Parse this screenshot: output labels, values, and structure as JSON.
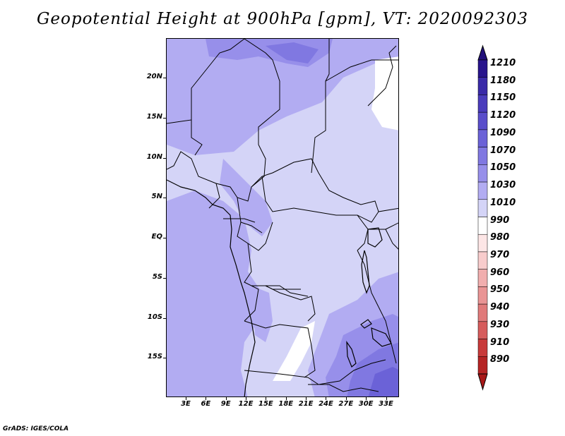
{
  "title": "Geopotential Height at 900hPa [gpm], VT: 2020092303",
  "footer": "GrADS: IGES/COLA",
  "lat_ticks": [
    {
      "label": "20N",
      "value": 20
    },
    {
      "label": "15N",
      "value": 15
    },
    {
      "label": "10N",
      "value": 10
    },
    {
      "label": "5N",
      "value": 5
    },
    {
      "label": "EQ",
      "value": 0
    },
    {
      "label": "5S",
      "value": -5
    },
    {
      "label": "10S",
      "value": -10
    },
    {
      "label": "15S",
      "value": -15
    }
  ],
  "lon_ticks": [
    {
      "label": "3E",
      "value": 3
    },
    {
      "label": "6E",
      "value": 6
    },
    {
      "label": "9E",
      "value": 9
    },
    {
      "label": "12E",
      "value": 12
    },
    {
      "label": "15E",
      "value": 15
    },
    {
      "label": "18E",
      "value": 18
    },
    {
      "label": "21E",
      "value": 21
    },
    {
      "label": "24E",
      "value": 24
    },
    {
      "label": "27E",
      "value": 27
    },
    {
      "label": "30E",
      "value": 30
    },
    {
      "label": "33E",
      "value": 33
    }
  ],
  "colorbar": {
    "levels": [
      {
        "label": "1210",
        "color": "#28148c"
      },
      {
        "label": "1180",
        "color": "#3a2aa8"
      },
      {
        "label": "1150",
        "color": "#4a3cbc"
      },
      {
        "label": "1120",
        "color": "#5a4ecb"
      },
      {
        "label": "1090",
        "color": "#6b62d7"
      },
      {
        "label": "1070",
        "color": "#8078e1"
      },
      {
        "label": "1050",
        "color": "#978fea"
      },
      {
        "label": "1030",
        "color": "#b2acf2"
      },
      {
        "label": "1010",
        "color": "#d4d4f7"
      },
      {
        "label": "990",
        "color": "#ffffff"
      },
      {
        "label": "980",
        "color": "#fde6e6"
      },
      {
        "label": "970",
        "color": "#f8cccc"
      },
      {
        "label": "960",
        "color": "#f1aeae"
      },
      {
        "label": "950",
        "color": "#e99494"
      },
      {
        "label": "940",
        "color": "#e07a7a"
      },
      {
        "label": "930",
        "color": "#d65c5c"
      },
      {
        "label": "910",
        "color": "#c83a3a"
      },
      {
        "label": "890",
        "color": "#b52424"
      }
    ],
    "top_color": "#22107a",
    "bottom_color": "#a81818"
  }
}
